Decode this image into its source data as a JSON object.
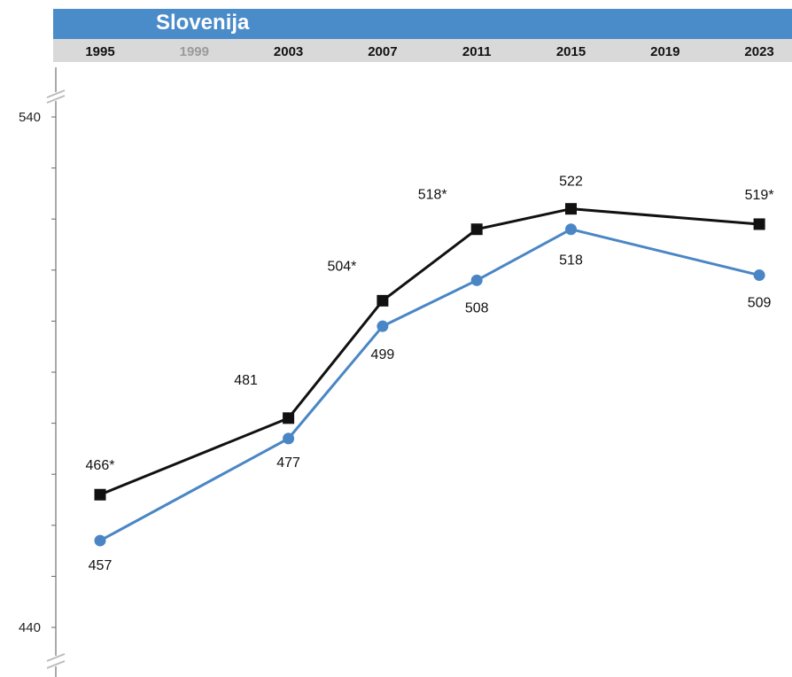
{
  "chart_data": {
    "type": "line",
    "title": "Slovenija",
    "categories": [
      "1995",
      "1999",
      "2003",
      "2007",
      "2011",
      "2015",
      "2019",
      "2023"
    ],
    "category_colors": [
      "#111111",
      "#9a9a9a",
      "#111111",
      "#111111",
      "#111111",
      "#111111",
      "#111111",
      "#111111"
    ],
    "ylim": [
      440,
      540
    ],
    "ytick_labels": [
      "540",
      "440"
    ],
    "ytick_values": [
      540,
      440
    ],
    "minor_tick_step": 10,
    "grid": false,
    "series": [
      {
        "color": "#111111",
        "marker": "square",
        "x": [
          "1995",
          "2003",
          "2007",
          "2011",
          "2015",
          "2023"
        ],
        "values": [
          466,
          481,
          504,
          518,
          522,
          519
        ],
        "labels": [
          "466*",
          "481",
          "504*",
          "518*",
          "522",
          "519*"
        ]
      },
      {
        "color": "#4a86c5",
        "marker": "circle",
        "x": [
          "1995",
          "2003",
          "2007",
          "2011",
          "2015",
          "2023"
        ],
        "values": [
          457,
          477,
          499,
          508,
          518,
          509
        ],
        "labels": [
          "457",
          "477",
          "499",
          "508",
          "518",
          "509"
        ]
      }
    ]
  }
}
